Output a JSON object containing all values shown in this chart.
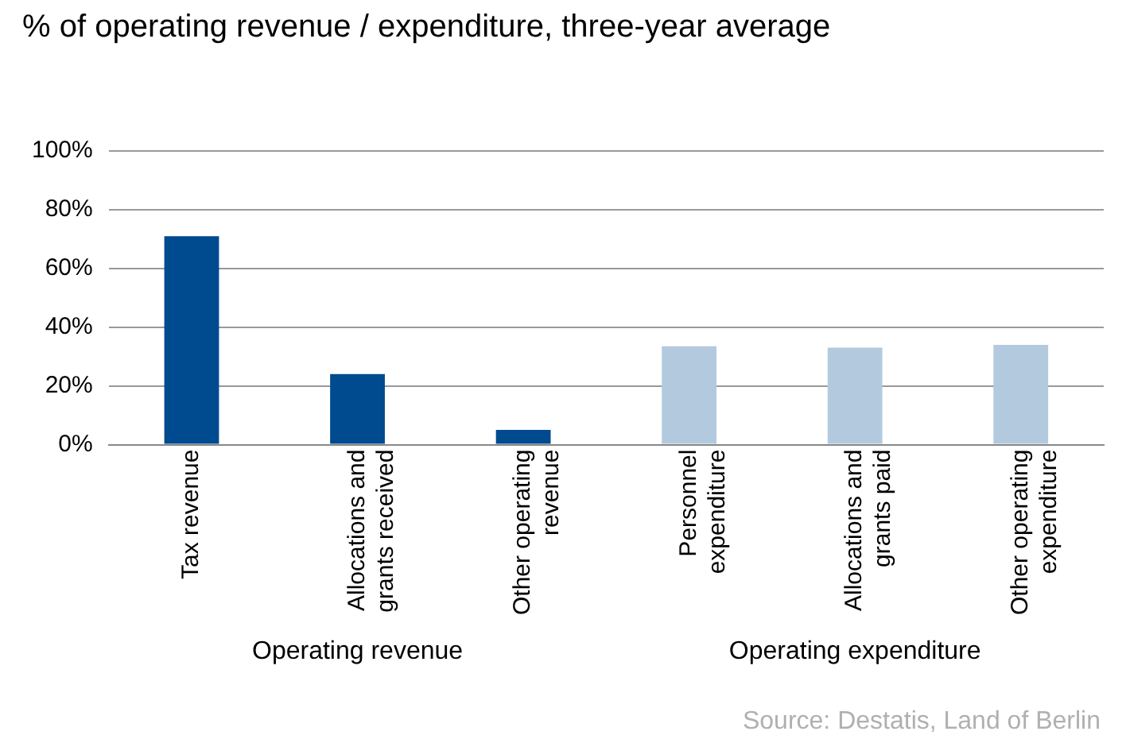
{
  "chart_data": {
    "type": "bar",
    "title": "% of operating revenue / expenditure, three-year average",
    "categories": [
      "Tax revenue",
      "Allocations and grants received",
      "Other operating revenue",
      "Personnel expenditure",
      "Allocations and grants paid",
      "Other operating expenditure"
    ],
    "values": [
      71,
      24,
      5,
      33.5,
      33,
      34
    ],
    "colors": [
      "#004a8f",
      "#004a8f",
      "#004a8f",
      "#b3cade",
      "#b3cade",
      "#b3cade"
    ],
    "ylim": [
      0,
      100
    ],
    "yticks": [
      {
        "value": 0,
        "label": "0%"
      },
      {
        "value": 20,
        "label": "20%"
      },
      {
        "value": 40,
        "label": "40%"
      },
      {
        "value": 60,
        "label": "60%"
      },
      {
        "value": 80,
        "label": "80%"
      },
      {
        "value": 100,
        "label": "100%"
      }
    ],
    "grid": "y",
    "legend": false,
    "annotations": [
      "Operating revenue",
      "Operating expenditure",
      "Source: Destatis, Land of Berlin"
    ]
  }
}
